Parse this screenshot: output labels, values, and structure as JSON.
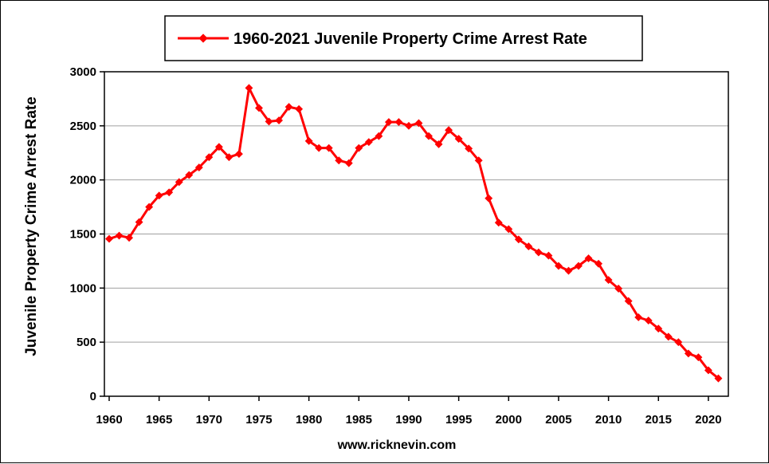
{
  "chart_data": {
    "type": "line",
    "title": "",
    "xlabel": "",
    "ylabel": "Juvenile Property Crime Arrest Rate",
    "xlim": [
      1960,
      2022
    ],
    "ylim": [
      0,
      3000
    ],
    "x_ticks": [
      1960,
      1965,
      1970,
      1975,
      1980,
      1985,
      1990,
      1995,
      2000,
      2005,
      2010,
      2015,
      2020
    ],
    "y_ticks": [
      0,
      500,
      1000,
      1500,
      2000,
      2500,
      3000
    ],
    "grid": "horizontal",
    "legend_position": "top",
    "line_color": "#ff0000",
    "series": [
      {
        "name": "1960-2021 Juvenile Property Crime Arrest Rate",
        "x": [
          1960,
          1961,
          1962,
          1963,
          1964,
          1965,
          1966,
          1967,
          1968,
          1969,
          1970,
          1971,
          1972,
          1973,
          1974,
          1975,
          1976,
          1977,
          1978,
          1979,
          1980,
          1981,
          1982,
          1983,
          1984,
          1985,
          1986,
          1987,
          1988,
          1989,
          1990,
          1991,
          1992,
          1993,
          1994,
          1995,
          1996,
          1997,
          1998,
          1999,
          2000,
          2001,
          2002,
          2003,
          2004,
          2005,
          2006,
          2007,
          2008,
          2009,
          2010,
          2011,
          2012,
          2013,
          2014,
          2015,
          2016,
          2017,
          2018,
          2019,
          2020,
          2021
        ],
        "values": [
          1455,
          1485,
          1465,
          1610,
          1750,
          1855,
          1885,
          1980,
          2045,
          2115,
          2210,
          2305,
          2210,
          2240,
          2850,
          2665,
          2540,
          2550,
          2675,
          2655,
          2360,
          2295,
          2295,
          2180,
          2155,
          2295,
          2350,
          2405,
          2535,
          2535,
          2500,
          2525,
          2405,
          2330,
          2460,
          2380,
          2290,
          2180,
          1830,
          1605,
          1545,
          1450,
          1385,
          1330,
          1300,
          1205,
          1160,
          1205,
          1275,
          1225,
          1075,
          995,
          880,
          730,
          700,
          625,
          550,
          500,
          395,
          360,
          240,
          165
        ]
      }
    ]
  },
  "footer": {
    "source": "www.ricknevin.com"
  }
}
